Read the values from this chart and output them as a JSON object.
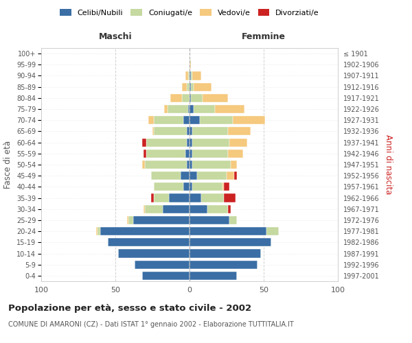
{
  "age_groups": [
    "0-4",
    "5-9",
    "10-14",
    "15-19",
    "20-24",
    "25-29",
    "30-34",
    "35-39",
    "40-44",
    "45-49",
    "50-54",
    "55-59",
    "60-64",
    "65-69",
    "70-74",
    "75-79",
    "80-84",
    "85-89",
    "90-94",
    "95-99",
    "100+"
  ],
  "birth_years": [
    "1997-2001",
    "1992-1996",
    "1987-1991",
    "1982-1986",
    "1977-1981",
    "1972-1976",
    "1967-1971",
    "1962-1966",
    "1957-1961",
    "1952-1956",
    "1947-1951",
    "1942-1946",
    "1937-1941",
    "1932-1936",
    "1927-1931",
    "1922-1926",
    "1917-1921",
    "1912-1916",
    "1907-1911",
    "1902-1906",
    "≤ 1901"
  ],
  "maschi": {
    "celibi": [
      32,
      37,
      48,
      55,
      60,
      38,
      18,
      14,
      4,
      6,
      2,
      3,
      2,
      2,
      4,
      1,
      0,
      0,
      0,
      0,
      0
    ],
    "coniugati": [
      0,
      0,
      0,
      0,
      2,
      3,
      12,
      10,
      20,
      20,
      28,
      26,
      27,
      22,
      20,
      14,
      5,
      2,
      1,
      0,
      0
    ],
    "vedovi": [
      0,
      0,
      0,
      0,
      1,
      1,
      1,
      0,
      0,
      0,
      2,
      0,
      0,
      1,
      4,
      2,
      8,
      3,
      2,
      0,
      0
    ],
    "divorziati": [
      0,
      0,
      0,
      0,
      0,
      0,
      0,
      2,
      0,
      0,
      0,
      2,
      3,
      0,
      0,
      0,
      0,
      0,
      0,
      0,
      0
    ]
  },
  "femmine": {
    "nubili": [
      32,
      46,
      48,
      55,
      52,
      27,
      12,
      8,
      2,
      5,
      2,
      2,
      2,
      2,
      7,
      3,
      1,
      1,
      1,
      0,
      0
    ],
    "coniugate": [
      0,
      0,
      0,
      0,
      8,
      5,
      14,
      15,
      20,
      20,
      26,
      24,
      25,
      24,
      22,
      14,
      8,
      2,
      1,
      0,
      0
    ],
    "vedove": [
      0,
      0,
      0,
      0,
      0,
      0,
      0,
      0,
      1,
      5,
      4,
      10,
      12,
      15,
      22,
      20,
      17,
      12,
      6,
      1,
      0
    ],
    "divorziate": [
      0,
      0,
      0,
      0,
      0,
      0,
      2,
      8,
      4,
      2,
      0,
      0,
      0,
      0,
      0,
      0,
      0,
      0,
      0,
      0,
      0
    ]
  },
  "colors": {
    "celibi": "#3a6ea5",
    "coniugati": "#c5d9a0",
    "vedovi": "#f5c97e",
    "divorziati": "#cc2222"
  },
  "xlim": 100,
  "title": "Popolazione per età, sesso e stato civile - 2002",
  "subtitle": "COMUNE DI AMARONI (CZ) - Dati ISTAT 1° gennaio 2002 - Elaborazione TUTTITALIA.IT",
  "ylabel_left": "Fasce di età",
  "ylabel_right": "Anni di nascita",
  "xlabel_left": "Maschi",
  "xlabel_right": "Femmine",
  "bg_color": "#ffffff",
  "grid_color": "#cccccc"
}
